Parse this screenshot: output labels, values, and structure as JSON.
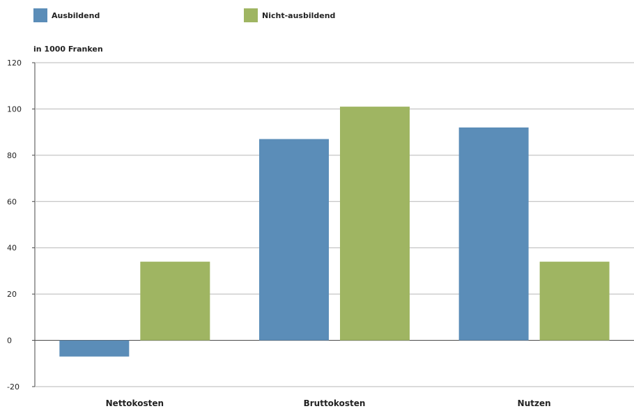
{
  "chart_data": {
    "type": "bar",
    "unit_label": "in 1000 Franken",
    "categories": [
      "Nettokosten",
      "Bruttokosten",
      "Nutzen"
    ],
    "series": [
      {
        "name": "Ausbildend",
        "color": "#5b8db8",
        "values": [
          -7,
          87,
          92
        ]
      },
      {
        "name": "Nicht-ausbildend",
        "color": "#9fb562",
        "values": [
          34,
          101,
          34
        ]
      }
    ],
    "ylim": [
      -20,
      120
    ],
    "yticks": [
      "120",
      "100",
      "80",
      "60",
      "40",
      "20",
      "0",
      "-20"
    ],
    "grid": true,
    "legend": "top-left"
  }
}
